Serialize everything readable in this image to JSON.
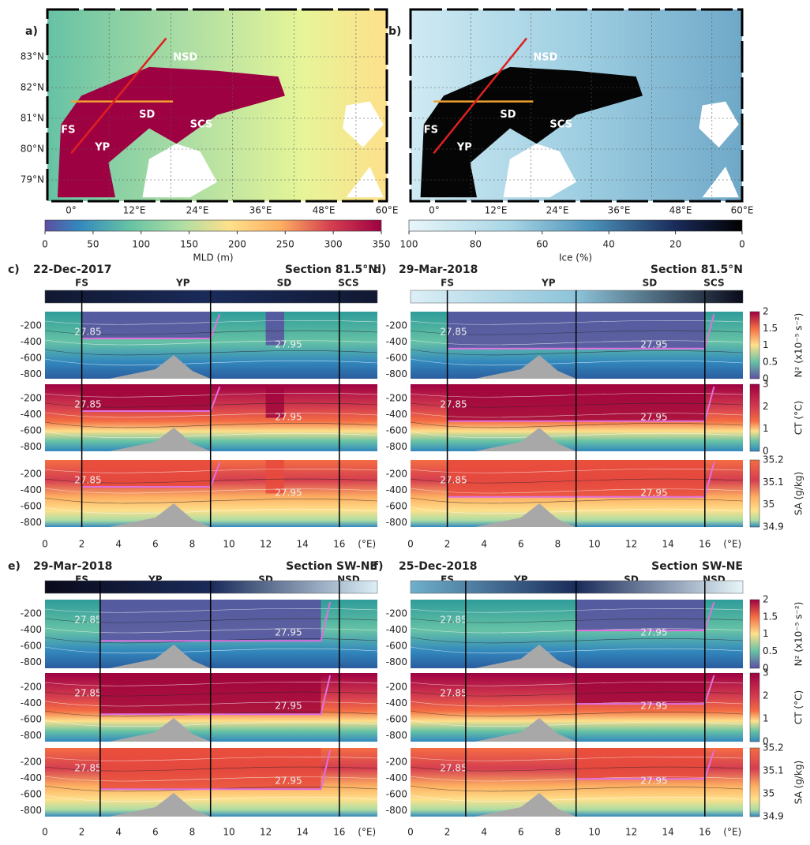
{
  "maps": [
    {
      "letter": "a)",
      "regions": [
        "NSD",
        "SD",
        "SCS",
        "FS",
        "YP"
      ],
      "lat_ticks": [
        "83°N",
        "82°N",
        "81°N",
        "80°N",
        "79°N"
      ],
      "lon_ticks": [
        "0°",
        "12°E",
        "24°E",
        "36°E",
        "48°E",
        "60°E"
      ],
      "colorbar": {
        "ticks": [
          0,
          50,
          100,
          150,
          200,
          250,
          300,
          350
        ],
        "label": "MLD (m)"
      }
    },
    {
      "letter": "b)",
      "regions": [
        "NSD",
        "SD",
        "SCS",
        "FS",
        "YP"
      ],
      "lon_ticks": [
        "0°",
        "12°E",
        "24°E",
        "36°E",
        "48°E",
        "60°E"
      ],
      "colorbar": {
        "ticks": [
          100,
          80,
          60,
          40,
          20,
          0
        ],
        "label": "Ice (%)"
      }
    }
  ],
  "sections": [
    {
      "letter": "c)",
      "date": "22-Dec-2017",
      "title": "Section 81.5°N",
      "markers": [
        "FS",
        "YP",
        "SD",
        "SCS"
      ],
      "contour_labels": [
        "27.85",
        "27.95"
      ]
    },
    {
      "letter": "d)",
      "date": "29-Mar-2018",
      "title": "Section 81.5°N",
      "markers": [
        "FS",
        "YP",
        "SD",
        "SCS"
      ],
      "contour_labels": [
        "27.85",
        "27.95"
      ]
    },
    {
      "letter": "e)",
      "date": "29-Mar-2018",
      "title": "Section SW-NE",
      "markers": [
        "FS",
        "YP",
        "SD",
        "NSD"
      ],
      "contour_labels": [
        "27.85",
        "27.95"
      ]
    },
    {
      "letter": "f)",
      "date": "25-Dec-2018",
      "title": "Section SW-NE",
      "markers": [
        "FS",
        "YP",
        "SD",
        "NSD"
      ],
      "contour_labels": [
        "27.85",
        "27.95"
      ]
    }
  ],
  "depth_ticks": [
    -200,
    -400,
    -600,
    -800
  ],
  "x_ticks": [
    0,
    2,
    4,
    6,
    8,
    10,
    12,
    14,
    16
  ],
  "x_unit": "(°E)",
  "colorbars": [
    {
      "label": "N² (x10⁻⁵ s⁻²)",
      "ticks": [
        2,
        1.5,
        1,
        0.5,
        0
      ]
    },
    {
      "label": "CT (°C)",
      "ticks": [
        3,
        2,
        1,
        0
      ]
    },
    {
      "label": "SA (g/kg)",
      "ticks": [
        35.2,
        35.1,
        35,
        34.9
      ]
    }
  ]
}
